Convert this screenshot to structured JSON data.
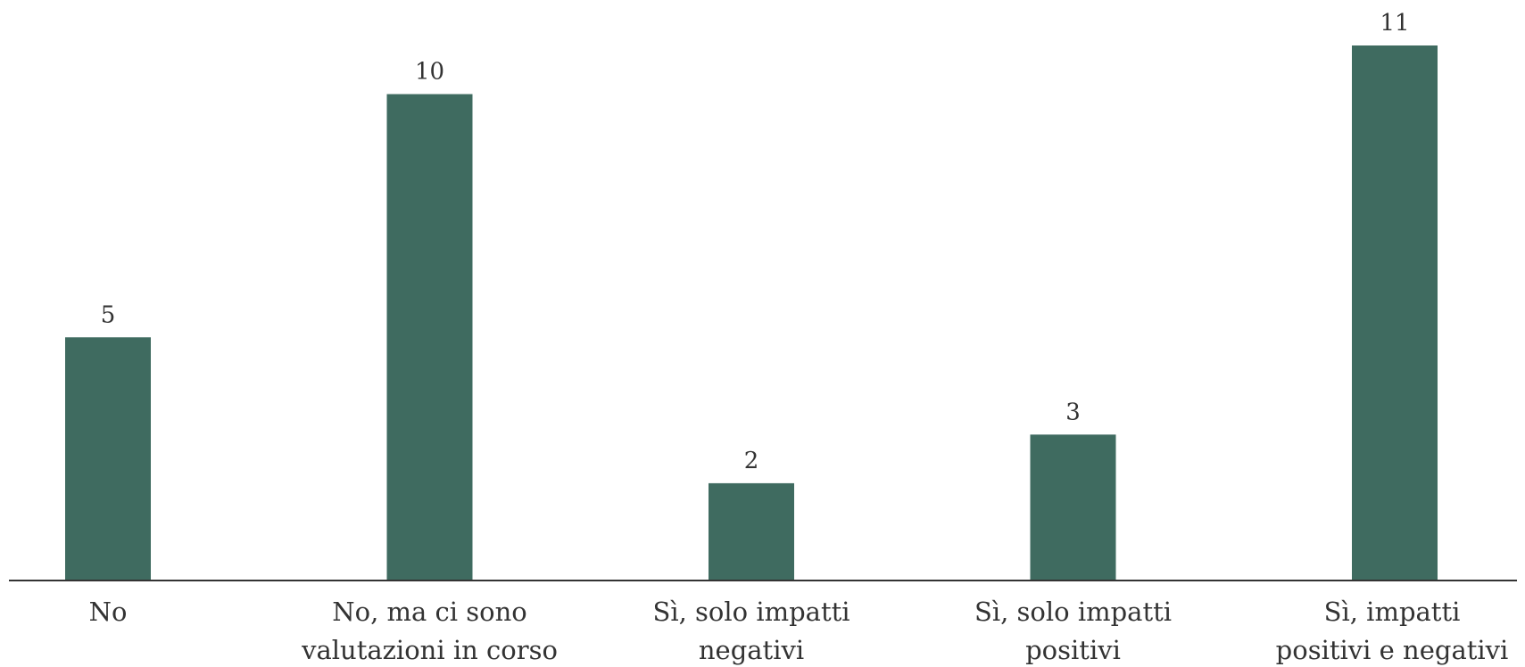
{
  "chart_data": {
    "type": "bar",
    "categories": [
      [
        "No"
      ],
      [
        "No, ma ci sono",
        "valutazioni in corso"
      ],
      [
        "Sì, solo impatti",
        "negativi"
      ],
      [
        "Sì, solo impatti",
        "positivi"
      ],
      [
        "Sì, impatti",
        "positivi e negativi"
      ]
    ],
    "values": [
      5,
      10,
      2,
      3,
      11
    ],
    "color": "#3f6b60"
  }
}
